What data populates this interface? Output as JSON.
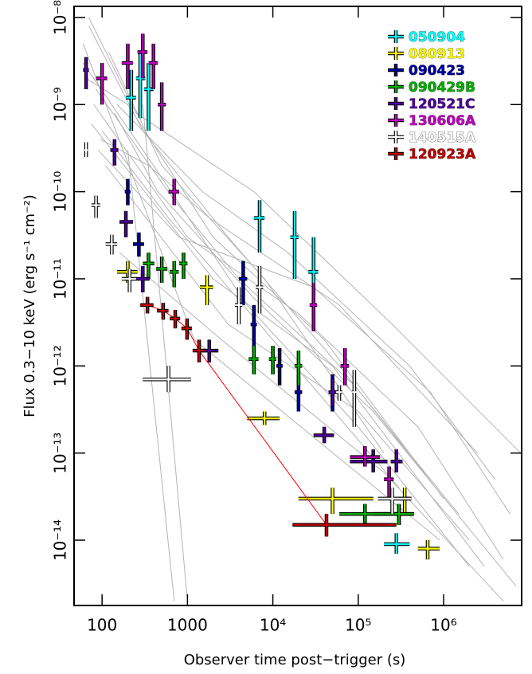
{
  "chart_data": {
    "type": "errorbar",
    "x_label": "Observer time post−trigger (s)",
    "y_label": "Flux 0.3−10 keV (erg s⁻¹ cm⁻²)",
    "xlog": true,
    "ylog": true,
    "xlim": [
      47,
      8200000
    ],
    "ylim": [
      1.78e-15,
      1.34e-08
    ],
    "xticks": [
      100,
      1000,
      {
        "value": 10000,
        "label": "10⁴"
      },
      {
        "value": 100000,
        "label": "10⁵"
      },
      {
        "value": 1000000,
        "label": "10⁶"
      }
    ],
    "yticks": [
      {
        "value": 1e-08,
        "label": "10⁻⁸"
      },
      {
        "value": 1e-09,
        "label": "10⁻⁹"
      },
      {
        "value": 1e-10,
        "label": "10⁻¹⁰"
      },
      {
        "value": 1e-11,
        "label": "10⁻¹¹"
      },
      {
        "value": 1e-12,
        "label": "10⁻¹²"
      },
      {
        "value": 1e-13,
        "label": "10⁻¹³"
      },
      {
        "value": 1e-14,
        "label": "10⁻¹⁴"
      }
    ],
    "legend": "top-right",
    "background_color": "#b4b4b4",
    "background": [
      {
        "x": [
          60,
          400,
          5000,
          100000,
          2000000
        ],
        "values": [
          3e-09,
          2e-10,
          5e-12,
          2e-13,
          5e-15
        ]
      },
      {
        "x": [
          70,
          300,
          3000,
          60000,
          800000
        ],
        "values": [
          8e-09,
          5e-10,
          3e-11,
          1e-12,
          4e-14
        ]
      },
      {
        "x": [
          80,
          1000,
          20000,
          500000,
          5000000
        ],
        "values": [
          1e-09,
          3e-11,
          4e-12,
          2e-13,
          6e-15
        ]
      },
      {
        "x": [
          100,
          600,
          10000,
          300000
        ],
        "values": [
          5e-10,
          5e-11,
          2e-12,
          4e-14
        ]
      },
      {
        "x": [
          65,
          200,
          2000,
          40000,
          1000000
        ],
        "values": [
          2e-09,
          1e-09,
          3e-11,
          2e-12,
          3e-14
        ]
      },
      {
        "x": [
          90,
          800,
          30000,
          700000,
          6000000
        ],
        "values": [
          3e-10,
          3e-11,
          8e-12,
          5e-13,
          2e-14
        ]
      },
      {
        "x": [
          120,
          500,
          8000,
          200000
        ],
        "values": [
          4e-09,
          2e-10,
          1e-11,
          1e-13
        ]
      },
      {
        "x": [
          75,
          2000,
          50000,
          3000000
        ],
        "values": [
          6e-10,
          1e-11,
          1e-12,
          5e-15
        ]
      },
      {
        "x": [
          150,
          1500,
          15000,
          400000,
          4000000
        ],
        "values": [
          1e-09,
          1e-10,
          2e-11,
          1e-12,
          5e-14
        ]
      },
      {
        "x": [
          85,
          700,
          4000,
          90000,
          1500000
        ],
        "values": [
          1.5e-09,
          8e-11,
          1e-11,
          6e-13,
          2e-14
        ]
      },
      {
        "x": [
          60,
          1200,
          900000
        ],
        "values": [
          5e-09,
          2e-12,
          1e-14
        ]
      },
      {
        "x": [
          110,
          3000,
          100000,
          2000000
        ],
        "values": [
          2e-10,
          3e-12,
          3e-13,
          1e-14
        ]
      },
      {
        "x": [
          300,
          1000
        ],
        "values": [
          1e-09,
          2e-15
        ]
      },
      {
        "x": [
          200,
          700
        ],
        "values": [
          3e-10,
          2e-15
        ]
      },
      {
        "x": [
          140,
          450,
          6000,
          150000,
          7000000
        ],
        "values": [
          8e-10,
          1e-10,
          6e-12,
          3e-13,
          3e-15
        ]
      },
      {
        "x": [
          70,
          250,
          6000,
          250000,
          8000000
        ],
        "values": [
          1e-08,
          8e-10,
          1e-10,
          3e-12,
          1e-13
        ]
      },
      {
        "x": [
          95,
          350,
          1800,
          60000,
          2500000
        ],
        "values": [
          4e-10,
          2e-10,
          5e-11,
          5e-12,
          1e-13
        ]
      },
      {
        "x": [
          160,
          2500,
          200000,
          5000000
        ],
        "values": [
          2e-11,
          2e-12,
          6e-14,
          2e-15
        ]
      }
    ],
    "series": [
      {
        "name": "050904",
        "color": "#00ffff",
        "x": [
          220,
          280,
          350,
          7000,
          18000,
          30000,
          280000
        ],
        "values": [
          1.2e-09,
          2e-09,
          1.5e-09,
          5e-11,
          3e-11,
          1.2e-11,
          9e-15
        ],
        "x_lo": [
          190,
          250,
          310,
          6000,
          16000,
          26000,
          200000
        ],
        "x_hi": [
          250,
          320,
          400,
          8000,
          20000,
          34000,
          400000
        ],
        "y_lo": [
          5e-10,
          7e-10,
          5e-10,
          2e-11,
          1e-11,
          3e-12,
          7e-15
        ],
        "y_hi": [
          2.5e-09,
          4e-09,
          3e-09,
          8e-11,
          6e-11,
          3e-11,
          1.2e-14
        ]
      },
      {
        "name": "080913",
        "color": "#ffff00",
        "x": [
          200,
          1700,
          8000,
          50000,
          350000,
          650000
        ],
        "values": [
          1.2e-11,
          8e-12,
          2.5e-13,
          3e-14,
          3e-14,
          8e-15
        ],
        "x_lo": [
          150,
          1400,
          5000,
          20000,
          280000,
          500000
        ],
        "x_hi": [
          260,
          2000,
          12000,
          150000,
          420000,
          900000
        ],
        "y_lo": [
          9e-12,
          5e-12,
          2.1e-13,
          2e-14,
          2e-14,
          6e-15
        ],
        "y_hi": [
          1.6e-11,
          1.1e-11,
          3e-13,
          4e-14,
          4e-14,
          1e-14
        ]
      },
      {
        "name": "090423",
        "color": "#0000a0",
        "x": [
          200,
          270,
          4500,
          6000,
          12000,
          20000,
          50000,
          300000
        ],
        "values": [
          1e-10,
          2.5e-11,
          1e-11,
          3e-12,
          1e-12,
          5e-13,
          5e-13,
          2e-14
        ],
        "x_lo": [
          185,
          230,
          4000,
          5500,
          11000,
          18000,
          45000,
          150000
        ],
        "x_hi": [
          215,
          310,
          5000,
          6500,
          13000,
          22000,
          55000,
          450000
        ],
        "y_lo": [
          7e-11,
          1.8e-11,
          5e-12,
          1.5e-12,
          6e-13,
          3e-13,
          3e-13,
          1.5e-14
        ],
        "y_hi": [
          1.4e-10,
          3.4e-11,
          1.6e-11,
          5e-12,
          1.6e-12,
          8e-13,
          8e-13,
          2.6e-14
        ]
      },
      {
        "name": "090429B",
        "color": "#00b000",
        "x": [
          350,
          500,
          700,
          900,
          6000,
          10000,
          20000,
          120000,
          300000
        ],
        "values": [
          1.5e-11,
          1.3e-11,
          1.2e-11,
          1.5e-11,
          1.2e-12,
          1.2e-12,
          1e-12,
          2e-14,
          2e-14
        ],
        "x_lo": [
          300,
          430,
          620,
          800,
          5200,
          9000,
          18000,
          60000,
          200000
        ],
        "x_hi": [
          410,
          580,
          790,
          1000,
          6800,
          11000,
          22000,
          220000,
          450000
        ],
        "y_lo": [
          1e-11,
          9e-12,
          8e-12,
          1e-11,
          8e-13,
          8e-13,
          6e-13,
          1.5e-14,
          1.5e-14
        ],
        "y_hi": [
          2e-11,
          1.8e-11,
          1.6e-11,
          2e-11,
          1.7e-12,
          1.7e-12,
          1.5e-12,
          2.6e-14,
          2.6e-14
        ]
      },
      {
        "name": "120521C",
        "color": "#5000a0",
        "x": [
          65,
          140,
          190,
          300,
          1800,
          40000,
          50000,
          150000,
          280000
        ],
        "values": [
          2.5e-09,
          3e-10,
          4.5e-11,
          1e-11,
          1.5e-12,
          1.6e-13,
          5e-13,
          8e-14,
          8e-14
        ],
        "x_lo": [
          60,
          125,
          160,
          250,
          1400,
          30000,
          45000,
          80000,
          240000
        ],
        "x_hi": [
          70,
          155,
          230,
          360,
          2300,
          52000,
          55000,
          220000,
          330000
        ],
        "y_lo": [
          1.5e-09,
          2e-10,
          3e-11,
          7e-12,
          1.1e-12,
          1.3e-13,
          3.5e-13,
          6e-14,
          6e-14
        ],
        "y_hi": [
          3.5e-09,
          4e-10,
          6e-11,
          1.4e-11,
          2e-12,
          2e-13,
          7e-13,
          1.1e-13,
          1.1e-13
        ]
      },
      {
        "name": "130606A",
        "color": "#c000c0",
        "x": [
          100,
          200,
          300,
          400,
          500,
          700,
          30000,
          70000,
          120000,
          230000
        ],
        "values": [
          2e-09,
          3e-09,
          4e-09,
          3e-09,
          1e-09,
          1e-10,
          5e-12,
          1e-12,
          9e-14,
          5e-14
        ],
        "x_lo": [
          85,
          170,
          260,
          350,
          450,
          600,
          27000,
          62000,
          80000,
          200000
        ],
        "x_hi": [
          115,
          230,
          340,
          450,
          560,
          800,
          33000,
          78000,
          180000,
          260000
        ],
        "y_lo": [
          1e-09,
          1.5e-09,
          2e-09,
          1.5e-09,
          5e-10,
          7e-11,
          2.5e-12,
          6e-13,
          7e-14,
          3e-14
        ],
        "y_hi": [
          3e-09,
          5e-09,
          6.5e-09,
          5e-09,
          1.8e-09,
          1.4e-10,
          9e-12,
          1.6e-12,
          1.2e-13,
          7e-14
        ]
      },
      {
        "name": "140515A",
        "color": "#ffffff",
        "x": [
          65,
          85,
          130,
          210,
          600,
          4000,
          7000,
          60000,
          90000,
          250000
        ],
        "values": [
          3e-10,
          7e-11,
          2.5e-11,
          1e-11,
          7e-13,
          5e-12,
          8e-12,
          5e-13,
          5e-13,
          3e-14
        ],
        "x_lo": [
          62,
          75,
          110,
          170,
          300,
          3600,
          6300,
          55000,
          85000,
          170000
        ],
        "x_hi": [
          68,
          95,
          150,
          250,
          1100,
          4400,
          7700,
          65000,
          95000,
          420000
        ],
        "y_lo": [
          2.5e-10,
          5e-11,
          1.9e-11,
          7e-12,
          5e-13,
          3e-12,
          4e-12,
          4e-13,
          2e-13,
          2e-14
        ],
        "y_hi": [
          3.7e-10,
          9e-11,
          3.2e-11,
          1.3e-11,
          1e-12,
          8e-12,
          1.4e-11,
          6e-13,
          9e-13,
          4e-14
        ]
      },
      {
        "name": "120923A",
        "color": "#c00000",
        "connected": true,
        "x": [
          340,
          520,
          720,
          990,
          1370,
          42500
        ],
        "values": [
          5e-12,
          4.3e-12,
          3.5e-12,
          2.7e-12,
          1.5e-12,
          1.5e-14
        ],
        "x_lo": [
          280,
          440,
          620,
          850,
          1150,
          17000
        ],
        "x_hi": [
          400,
          600,
          820,
          1130,
          1600,
          280000
        ],
        "y_lo": [
          4e-12,
          3.4e-12,
          2.7e-12,
          2e-12,
          1.1e-12,
          1.1e-14
        ],
        "y_hi": [
          6.2e-12,
          5.3e-12,
          4.4e-12,
          3.5e-12,
          2e-12,
          2e-14
        ]
      }
    ]
  }
}
